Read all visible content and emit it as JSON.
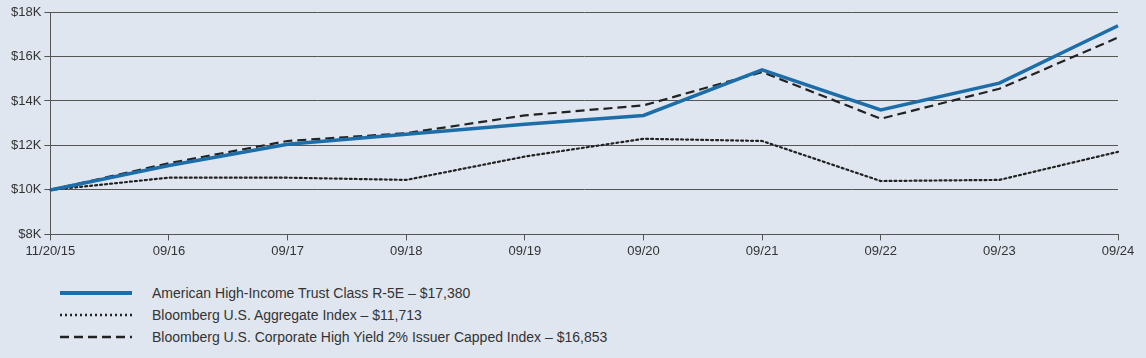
{
  "chart_data": {
    "type": "line",
    "categories": [
      "11/20/15",
      "09/16",
      "09/17",
      "09/18",
      "09/19",
      "09/20",
      "09/21",
      "09/22",
      "09/23",
      "09/24"
    ],
    "series": [
      {
        "name": "American High-Income Trust Class R-5E – $17,380",
        "color": "#1d6ea8",
        "line_style": "solid",
        "values": [
          10000,
          11100,
          12050,
          12500,
          12950,
          13350,
          15400,
          13600,
          14800,
          17380
        ]
      },
      {
        "name": "Bloomberg U.S. Aggregate Index – $11,713",
        "color": "#222222",
        "line_style": "dotted",
        "values": [
          10000,
          10550,
          10550,
          10450,
          11500,
          12300,
          12200,
          10400,
          10450,
          11713
        ]
      },
      {
        "name": "Bloomberg U.S. Corporate High Yield 2% Issuer Capped Index – $16,853",
        "color": "#222222",
        "line_style": "dashed",
        "values": [
          10000,
          11200,
          12200,
          12550,
          13350,
          13800,
          15300,
          13200,
          14550,
          16853
        ]
      }
    ],
    "ylim": [
      8000,
      18000
    ],
    "yticks": [
      {
        "value": 8000,
        "label": "$8K"
      },
      {
        "value": 10000,
        "label": "$10K"
      },
      {
        "value": 12000,
        "label": "$12K"
      },
      {
        "value": 14000,
        "label": "$14K"
      },
      {
        "value": 16000,
        "label": "$16K"
      },
      {
        "value": 18000,
        "label": "$18K"
      }
    ],
    "grid": true,
    "legend": "bottom"
  }
}
